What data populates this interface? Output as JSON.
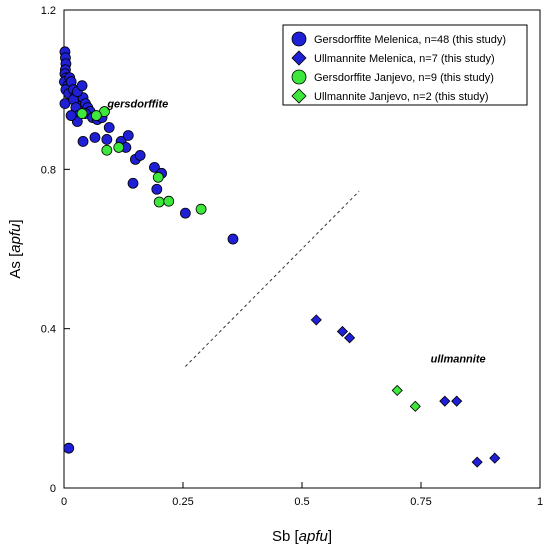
{
  "chart_data": {
    "type": "scatter",
    "xlabel_prefix": "Sb [",
    "xlabel_unit": "apfu",
    "xlabel_suffix": "]",
    "ylabel_prefix": "As [",
    "ylabel_unit": "apfu",
    "ylabel_suffix": "]",
    "xlim": [
      0,
      1
    ],
    "ylim": [
      0,
      1.2
    ],
    "x_ticks": [
      {
        "value": 0,
        "label": "0"
      },
      {
        "value": 0.25,
        "label": "0.25"
      },
      {
        "value": 0.5,
        "label": "0.5"
      },
      {
        "value": 0.75,
        "label": "0.75"
      },
      {
        "value": 1,
        "label": "1"
      }
    ],
    "y_ticks": [
      {
        "value": 0,
        "label": "0"
      },
      {
        "value": 0.4,
        "label": "0.4"
      },
      {
        "value": 0.8,
        "label": "0.8"
      },
      {
        "value": 1.2,
        "label": "1.2"
      }
    ],
    "grid": false,
    "legend_position": "top-right",
    "series": [
      {
        "name": "Gersdorffite Melenica, n=48 (this study)",
        "marker": "circle",
        "color": "#1f1fd6",
        "points": [
          [
            0.002,
            1.095
          ],
          [
            0.003,
            1.08
          ],
          [
            0.004,
            1.065
          ],
          [
            0.003,
            1.05
          ],
          [
            0.002,
            1.04
          ],
          [
            0.005,
            1.03
          ],
          [
            0.001,
            1.02
          ],
          [
            0.008,
            1.01
          ],
          [
            0.004,
            1.0
          ],
          [
            0.01,
            0.99
          ],
          [
            0.002,
            0.965
          ],
          [
            0.012,
            1.03
          ],
          [
            0.015,
            1.02
          ],
          [
            0.02,
            1.0
          ],
          [
            0.025,
            0.985
          ],
          [
            0.03,
            0.97
          ],
          [
            0.035,
            0.96
          ],
          [
            0.04,
            0.98
          ],
          [
            0.045,
            0.965
          ],
          [
            0.05,
            0.955
          ],
          [
            0.055,
            0.945
          ],
          [
            0.02,
            0.975
          ],
          [
            0.028,
            0.995
          ],
          [
            0.038,
            1.01
          ],
          [
            0.025,
            0.955
          ],
          [
            0.03,
            0.935
          ],
          [
            0.045,
            0.94
          ],
          [
            0.06,
            0.93
          ],
          [
            0.07,
            0.925
          ],
          [
            0.08,
            0.93
          ],
          [
            0.028,
            0.92
          ],
          [
            0.015,
            0.935
          ],
          [
            0.095,
            0.905
          ],
          [
            0.12,
            0.87
          ],
          [
            0.135,
            0.885
          ],
          [
            0.04,
            0.87
          ],
          [
            0.065,
            0.88
          ],
          [
            0.09,
            0.875
          ],
          [
            0.13,
            0.855
          ],
          [
            0.15,
            0.825
          ],
          [
            0.16,
            0.835
          ],
          [
            0.19,
            0.805
          ],
          [
            0.205,
            0.79
          ],
          [
            0.195,
            0.75
          ],
          [
            0.145,
            0.765
          ],
          [
            0.255,
            0.69
          ],
          [
            0.355,
            0.625
          ],
          [
            0.01,
            0.1
          ]
        ]
      },
      {
        "name": "Ullmannite Melenica, n=7 (this study)",
        "marker": "diamond",
        "color": "#1f1fd6",
        "points": [
          [
            0.53,
            0.422
          ],
          [
            0.585,
            0.393
          ],
          [
            0.6,
            0.377
          ],
          [
            0.8,
            0.218
          ],
          [
            0.825,
            0.218
          ],
          [
            0.868,
            0.065
          ],
          [
            0.905,
            0.075
          ]
        ]
      },
      {
        "name": "Gersdorffite Janjevo, n=9 (this study)",
        "marker": "circle",
        "color": "#3de83d",
        "points": [
          [
            0.085,
            0.945
          ],
          [
            0.068,
            0.935
          ],
          [
            0.038,
            0.94
          ],
          [
            0.09,
            0.848
          ],
          [
            0.115,
            0.855
          ],
          [
            0.198,
            0.78
          ],
          [
            0.2,
            0.718
          ],
          [
            0.22,
            0.72
          ],
          [
            0.288,
            0.7
          ]
        ]
      },
      {
        "name": "Ullmannite Janjevo, n=2 (this study)",
        "marker": "diamond",
        "color": "#3de83d",
        "points": [
          [
            0.7,
            0.245
          ],
          [
            0.738,
            0.205
          ]
        ]
      }
    ],
    "annotations": [
      {
        "text": "gersdorffite",
        "x": 0.155,
        "y": 0.955
      },
      {
        "text": "ullmannite",
        "x": 0.828,
        "y": 0.315
      }
    ],
    "dashed_line": {
      "x1": 0.255,
      "y1": 0.305,
      "x2": 0.62,
      "y2": 0.745
    }
  }
}
